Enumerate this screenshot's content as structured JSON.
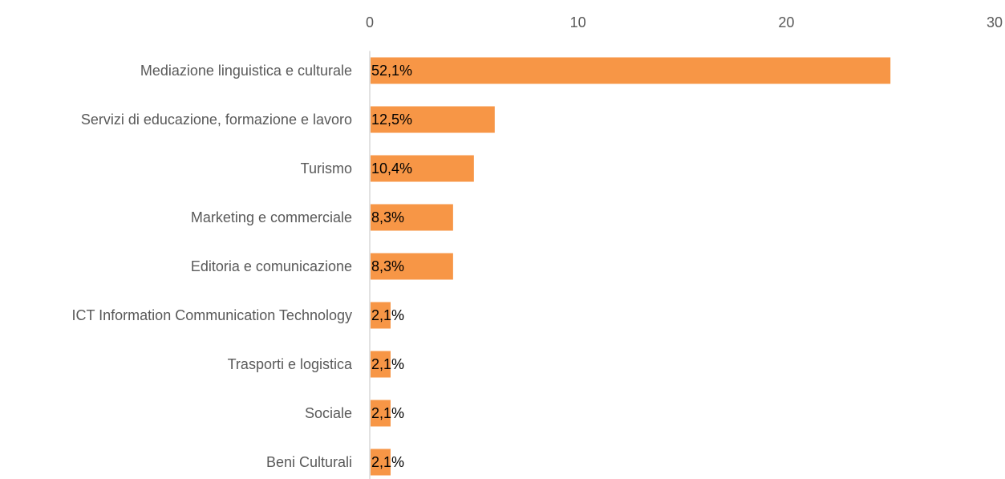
{
  "chart_data": {
    "type": "bar",
    "orientation": "horizontal",
    "categories": [
      "Mediazione linguistica e culturale",
      "Servizi di educazione, formazione e lavoro",
      "Turismo",
      "Marketing e commerciale",
      "Editoria e comunicazione",
      "ICT Information Communication Technology",
      "Trasporti e logistica",
      "Sociale",
      "Beni Culturali"
    ],
    "values": [
      25,
      6,
      5,
      4,
      4,
      1,
      1,
      1,
      1
    ],
    "data_labels": [
      "52,1%",
      "12,5%",
      "10,4%",
      "8,3%",
      "8,3%",
      "2,1%",
      "2,1%",
      "2,1%",
      "2,1%"
    ],
    "title": "",
    "xlabel": "",
    "ylabel": "",
    "xlim": [
      0,
      30
    ],
    "x_ticks": [
      "0",
      "10",
      "20",
      "30"
    ],
    "x_axis_position": "top",
    "grid": false,
    "legend": "none",
    "bar_color": "#F79646",
    "axis_line_color": "#D9D9D9"
  }
}
